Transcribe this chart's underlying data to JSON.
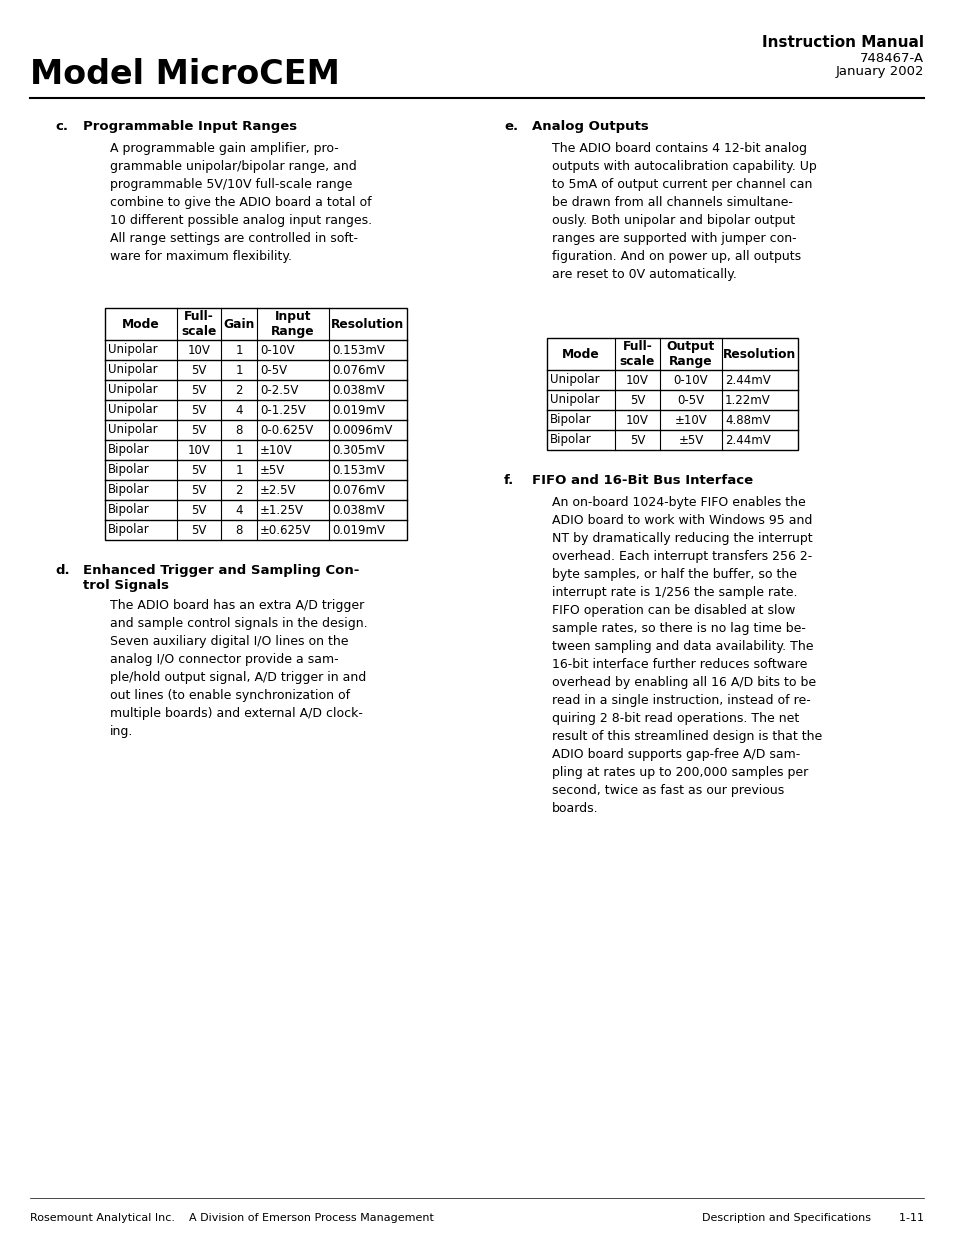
{
  "page_bg": "#ffffff",
  "header_title_left": "Model MicroCEM",
  "header_title_right": "Instruction Manual",
  "header_sub1": "748467-A",
  "header_sub2": "January 2002",
  "footer_left": "Rosemount Analytical Inc.    A Division of Emerson Process Management",
  "footer_right": "Description and Specifications        1-11",
  "section_c_label": "c.",
  "section_c_title": "Programmable Input Ranges",
  "section_c_body": "A programmable gain amplifier, pro-\ngrammable unipolar/bipolar range, and\nprogrammable 5V/10V full-scale range\ncombine to give the ADIO board a total of\n10 different possible analog input ranges.\nAll range settings are controlled in soft-\nware for maximum flexibility.",
  "table1_headers": [
    "Mode",
    "Full-\nscale",
    "Gain",
    "Input\nRange",
    "Resolution"
  ],
  "table1_rows": [
    [
      "Unipolar",
      "10V",
      "1",
      "0-10V",
      "0.153mV"
    ],
    [
      "Unipolar",
      "5V",
      "1",
      "0-5V",
      "0.076mV"
    ],
    [
      "Unipolar",
      "5V",
      "2",
      "0-2.5V",
      "0.038mV"
    ],
    [
      "Unipolar",
      "5V",
      "4",
      "0-1.25V",
      "0.019mV"
    ],
    [
      "Unipolar",
      "5V",
      "8",
      "0-0.625V",
      "0.0096mV"
    ],
    [
      "Bipolar",
      "10V",
      "1",
      "±10V",
      "0.305mV"
    ],
    [
      "Bipolar",
      "5V",
      "1",
      "±5V",
      "0.153mV"
    ],
    [
      "Bipolar",
      "5V",
      "2",
      "±2.5V",
      "0.076mV"
    ],
    [
      "Bipolar",
      "5V",
      "4",
      "±1.25V",
      "0.038mV"
    ],
    [
      "Bipolar",
      "5V",
      "8",
      "±0.625V",
      "0.019mV"
    ]
  ],
  "section_d_label": "d.",
  "section_d_title_line1": "Enhanced Trigger and Sampling Con-",
  "section_d_title_line2": "trol Signals",
  "section_d_body": "The ADIO board has an extra A/D trigger\nand sample control signals in the design.\nSeven auxiliary digital I/O lines on the\nanalog I/O connector provide a sam-\nple/hold output signal, A/D trigger in and\nout lines (to enable synchronization of\nmultiple boards) and external A/D clock-\ning.",
  "section_e_label": "e.",
  "section_e_title": "Analog Outputs",
  "section_e_body": "The ADIO board contains 4 12-bit analog\noutputs with autocalibration capability. Up\nto 5mA of output current per channel can\nbe drawn from all channels simultane-\nously. Both unipolar and bipolar output\nranges are supported with jumper con-\nfiguration. And on power up, all outputs\nare reset to 0V automatically.",
  "table2_headers": [
    "Mode",
    "Full-\nscale",
    "Output\nRange",
    "Resolution"
  ],
  "table2_rows": [
    [
      "Unipolar",
      "10V",
      "0-10V",
      "2.44mV"
    ],
    [
      "Unipolar",
      "5V",
      "0-5V",
      "1.22mV"
    ],
    [
      "Bipolar",
      "10V",
      "±10V",
      "4.88mV"
    ],
    [
      "Bipolar",
      "5V",
      "±5V",
      "2.44mV"
    ]
  ],
  "section_f_label": "f.",
  "section_f_title": "FIFO and 16-Bit Bus Interface",
  "section_f_body": "An on-board 1024-byte FIFO enables the\nADIO board to work with Windows 95 and\nNT by dramatically reducing the interrupt\noverhead. Each interrupt transfers 256 2-\nbyte samples, or half the buffer, so the\ninterrupt rate is 1/256 the sample rate.\nFIFO operation can be disabled at slow\nsample rates, so there is no lag time be-\ntween sampling and data availability. The\n16-bit interface further reduces software\noverhead by enabling all 16 A/D bits to be\nread in a single instruction, instead of re-\nquiring 2 8-bit read operations. The net\nresult of this streamlined design is that the\nADIO board supports gap-free A/D sam-\npling at rates up to 200,000 samples per\nsecond, twice as fast as our previous\nboards."
}
